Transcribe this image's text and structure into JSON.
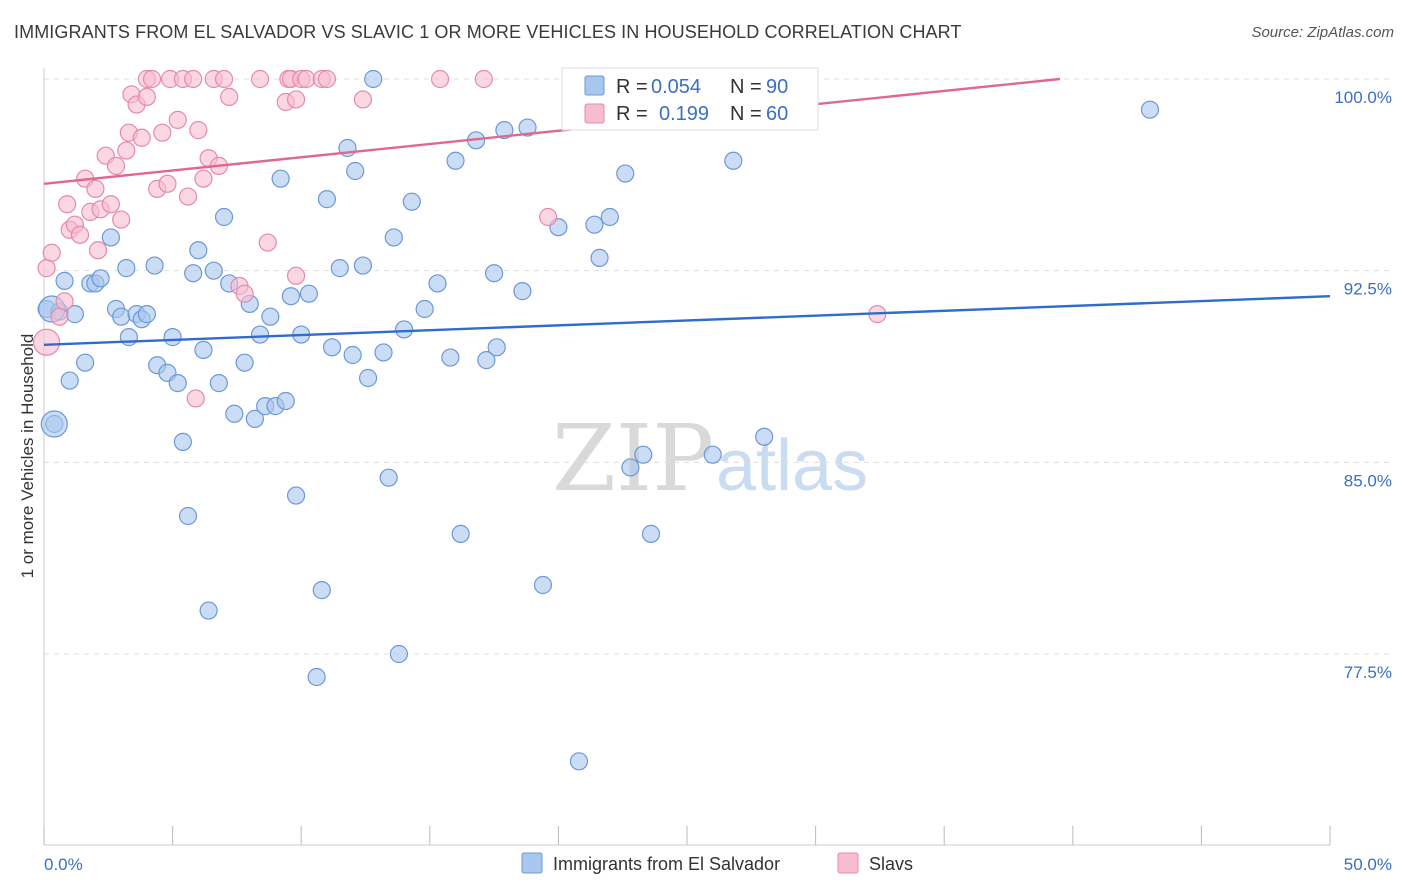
{
  "title": "IMMIGRANTS FROM EL SALVADOR VS SLAVIC 1 OR MORE VEHICLES IN HOUSEHOLD CORRELATION CHART",
  "source": "Source: ZipAtlas.com",
  "watermark": {
    "zip": "ZIP",
    "atlas": "atlas"
  },
  "colors": {
    "blue_fill": "#a9c6ee",
    "blue_stroke": "#6b98d8",
    "blue_line": "#2f6ccc",
    "pink_fill": "#f6bdd0",
    "pink_stroke": "#e58aaa",
    "pink_line": "#e0678f",
    "grid": "#dddddd",
    "tick_text": "#3a6fc4"
  },
  "legend": {
    "r_label": "R =",
    "n_label": "N =",
    "series": [
      {
        "name": "Immigrants from El Salvador",
        "r": "0.054",
        "n": "90"
      },
      {
        "name": "Slavs",
        "r": "0.199",
        "n": "60"
      }
    ]
  },
  "chart_data": {
    "type": "scatter",
    "title": "IMMIGRANTS FROM EL SALVADOR VS SLAVIC 1 OR MORE VEHICLES IN HOUSEHOLD CORRELATION CHART",
    "xlabel": "",
    "ylabel": "1 or more Vehicles in Household",
    "xlim": [
      0,
      50
    ],
    "ylim": [
      71,
      100.8
    ],
    "x_tick_labels": [
      "0.0%",
      "50.0%"
    ],
    "y_ticks": [
      77.5,
      85.0,
      92.5,
      100.0
    ],
    "y_tick_labels": [
      "77.5%",
      "85.0%",
      "92.5%",
      "100.0%"
    ],
    "grid": true,
    "legend_position": "top-center",
    "series": [
      {
        "name": "Immigrants from El Salvador",
        "trendline": {
          "x": [
            0,
            50
          ],
          "y": [
            89.6,
            91.5
          ]
        },
        "points": [
          [
            0.1,
            91.0
          ],
          [
            0.4,
            86.5
          ],
          [
            0.6,
            90.9
          ],
          [
            0.8,
            92.1
          ],
          [
            1.0,
            88.2
          ],
          [
            1.2,
            90.8
          ],
          [
            1.6,
            88.9
          ],
          [
            1.8,
            92.0
          ],
          [
            2.0,
            92.0
          ],
          [
            2.2,
            92.2
          ],
          [
            2.6,
            93.8
          ],
          [
            2.8,
            91.0
          ],
          [
            3.0,
            90.7
          ],
          [
            3.2,
            92.6
          ],
          [
            3.3,
            89.9
          ],
          [
            3.6,
            90.8
          ],
          [
            3.8,
            90.6
          ],
          [
            4.0,
            90.8
          ],
          [
            4.3,
            92.7
          ],
          [
            4.4,
            88.8
          ],
          [
            4.8,
            88.5
          ],
          [
            5.0,
            89.9
          ],
          [
            5.2,
            88.1
          ],
          [
            5.4,
            85.8
          ],
          [
            5.6,
            82.9
          ],
          [
            5.8,
            92.4
          ],
          [
            6.0,
            93.3
          ],
          [
            6.2,
            89.4
          ],
          [
            6.4,
            79.2
          ],
          [
            6.6,
            92.5
          ],
          [
            6.8,
            88.1
          ],
          [
            7.0,
            94.6
          ],
          [
            7.2,
            92.0
          ],
          [
            7.4,
            86.9
          ],
          [
            7.8,
            88.9
          ],
          [
            8.0,
            91.2
          ],
          [
            8.2,
            86.7
          ],
          [
            8.4,
            90.0
          ],
          [
            8.6,
            87.2
          ],
          [
            8.8,
            90.7
          ],
          [
            9.0,
            87.2
          ],
          [
            9.2,
            96.1
          ],
          [
            9.4,
            87.4
          ],
          [
            9.6,
            91.5
          ],
          [
            9.8,
            83.7
          ],
          [
            10.0,
            90.0
          ],
          [
            10.3,
            91.6
          ],
          [
            10.6,
            76.6
          ],
          [
            10.8,
            80.0
          ],
          [
            11.0,
            95.3
          ],
          [
            11.2,
            89.5
          ],
          [
            11.5,
            92.6
          ],
          [
            11.8,
            97.3
          ],
          [
            12.0,
            89.2
          ],
          [
            12.1,
            96.4
          ],
          [
            12.4,
            92.7
          ],
          [
            12.6,
            88.3
          ],
          [
            12.8,
            100.0
          ],
          [
            13.2,
            89.3
          ],
          [
            13.4,
            84.4
          ],
          [
            13.6,
            93.8
          ],
          [
            13.8,
            77.5
          ],
          [
            14.0,
            90.2
          ],
          [
            14.3,
            95.2
          ],
          [
            14.8,
            91.0
          ],
          [
            15.3,
            92.0
          ],
          [
            15.8,
            89.1
          ],
          [
            16.0,
            96.8
          ],
          [
            16.2,
            82.2
          ],
          [
            16.8,
            97.6
          ],
          [
            17.2,
            89.0
          ],
          [
            17.5,
            92.4
          ],
          [
            17.6,
            89.5
          ],
          [
            17.9,
            98.0
          ],
          [
            18.6,
            91.7
          ],
          [
            18.8,
            98.1
          ],
          [
            19.4,
            80.2
          ],
          [
            20.0,
            94.2
          ],
          [
            20.8,
            73.3
          ],
          [
            21.4,
            94.3
          ],
          [
            21.6,
            93.0
          ],
          [
            22.0,
            94.6
          ],
          [
            22.6,
            96.3
          ],
          [
            22.8,
            84.8
          ],
          [
            23.3,
            85.3
          ],
          [
            23.6,
            82.2
          ],
          [
            26.0,
            85.3
          ],
          [
            26.8,
            96.8
          ],
          [
            28.0,
            86.0
          ],
          [
            43.0,
            98.8
          ]
        ],
        "large_points": [
          [
            0.3,
            91.0
          ],
          [
            0.4,
            86.5
          ]
        ]
      },
      {
        "name": "Slavs",
        "trendline": {
          "x": [
            0,
            39.5
          ],
          "y": [
            95.9,
            100.0
          ]
        },
        "points": [
          [
            0.1,
            92.6
          ],
          [
            0.3,
            93.2
          ],
          [
            0.6,
            90.7
          ],
          [
            0.8,
            91.3
          ],
          [
            0.9,
            95.1
          ],
          [
            1.0,
            94.1
          ],
          [
            1.2,
            94.3
          ],
          [
            1.4,
            93.9
          ],
          [
            1.6,
            96.1
          ],
          [
            1.8,
            94.8
          ],
          [
            2.0,
            95.7
          ],
          [
            2.1,
            93.3
          ],
          [
            2.2,
            94.9
          ],
          [
            2.4,
            97.0
          ],
          [
            2.6,
            95.1
          ],
          [
            2.8,
            96.6
          ],
          [
            3.0,
            94.5
          ],
          [
            3.2,
            97.2
          ],
          [
            3.3,
            97.9
          ],
          [
            3.4,
            99.4
          ],
          [
            3.6,
            99.0
          ],
          [
            3.8,
            97.7
          ],
          [
            4.0,
            99.3
          ],
          [
            4.0,
            100.0
          ],
          [
            4.2,
            100.0
          ],
          [
            4.4,
            95.7
          ],
          [
            4.6,
            97.9
          ],
          [
            4.8,
            95.9
          ],
          [
            4.9,
            100.0
          ],
          [
            5.2,
            98.4
          ],
          [
            5.4,
            100.0
          ],
          [
            5.6,
            95.4
          ],
          [
            5.8,
            100.0
          ],
          [
            5.9,
            87.5
          ],
          [
            6.0,
            98.0
          ],
          [
            6.2,
            96.1
          ],
          [
            6.4,
            96.9
          ],
          [
            6.6,
            100.0
          ],
          [
            6.8,
            96.6
          ],
          [
            7.0,
            100.0
          ],
          [
            7.2,
            99.3
          ],
          [
            7.6,
            91.9
          ],
          [
            7.8,
            91.6
          ],
          [
            8.4,
            100.0
          ],
          [
            8.7,
            93.6
          ],
          [
            9.4,
            99.1
          ],
          [
            9.5,
            100.0
          ],
          [
            9.6,
            100.0
          ],
          [
            9.8,
            99.2
          ],
          [
            9.8,
            92.3
          ],
          [
            10.0,
            100.0
          ],
          [
            10.2,
            100.0
          ],
          [
            10.8,
            100.0
          ],
          [
            11.0,
            100.0
          ],
          [
            12.4,
            99.2
          ],
          [
            15.4,
            100.0
          ],
          [
            17.1,
            100.0
          ],
          [
            19.6,
            94.6
          ],
          [
            28.5,
            100.0
          ],
          [
            32.4,
            90.8
          ]
        ],
        "large_points": [
          [
            0.1,
            89.7
          ]
        ]
      }
    ]
  }
}
